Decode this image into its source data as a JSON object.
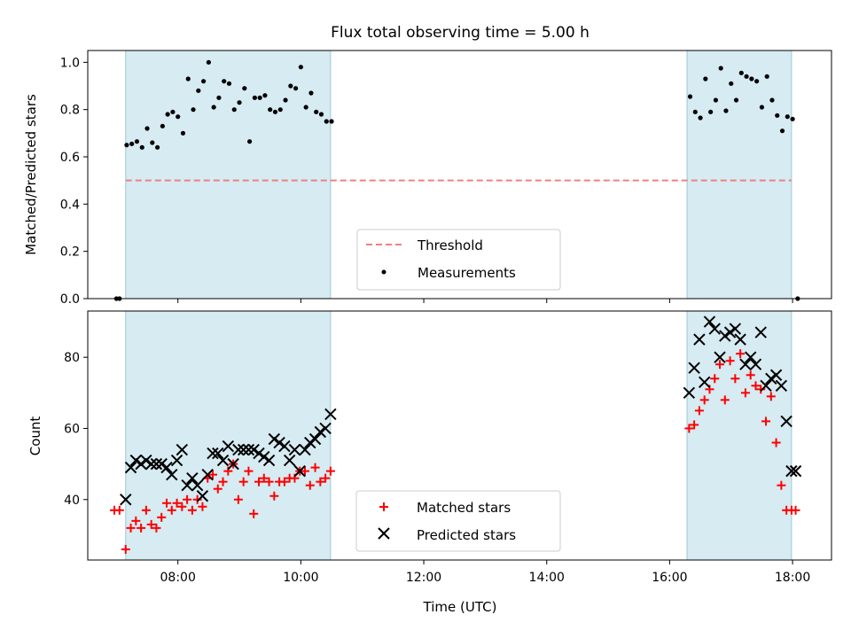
{
  "chart_data": [
    {
      "type": "scatter",
      "title": "Flux total observing time = 5.00 h",
      "ylabel": "Matched/Predicted stars",
      "xlabel": "",
      "xlim": [
        "06:32",
        "18:38"
      ],
      "ylim": [
        0,
        1.05
      ],
      "xticks": [
        "08:00",
        "10:00",
        "12:00",
        "14:00",
        "16:00",
        "18:00"
      ],
      "yticks": [
        "0.0",
        "0.2",
        "0.4",
        "0.6",
        "0.8",
        "1.0"
      ],
      "shaded_intervals": [
        [
          "07:09",
          "10:29"
        ],
        [
          "16:17",
          "17:59"
        ]
      ],
      "threshold": {
        "value": 0.5,
        "x_range": [
          "07:09",
          "17:59"
        ],
        "color": "#f08080"
      },
      "legend": {
        "placement": "lower-center",
        "entries": [
          "Threshold",
          "Measurements"
        ]
      },
      "series": [
        {
          "name": "Measurements",
          "marker": "dot",
          "color": "#000000",
          "x": [
            "07:00",
            "07:03",
            "07:10",
            "07:15",
            "07:20",
            "07:25",
            "07:30",
            "07:35",
            "07:40",
            "07:45",
            "07:50",
            "07:55",
            "08:00",
            "08:05",
            "08:10",
            "08:15",
            "08:20",
            "08:25",
            "08:30",
            "08:35",
            "08:40",
            "08:45",
            "08:50",
            "08:55",
            "09:00",
            "09:05",
            "09:10",
            "09:15",
            "09:20",
            "09:25",
            "09:30",
            "09:35",
            "09:40",
            "09:45",
            "09:50",
            "09:55",
            "10:00",
            "10:05",
            "10:10",
            "10:15",
            "10:20",
            "10:25",
            "10:30",
            "16:20",
            "16:25",
            "16:30",
            "16:35",
            "16:40",
            "16:45",
            "16:50",
            "16:55",
            "17:00",
            "17:05",
            "17:10",
            "17:15",
            "17:20",
            "17:25",
            "17:30",
            "17:35",
            "17:40",
            "17:45",
            "17:50",
            "17:55",
            "18:00",
            "18:05"
          ],
          "y": [
            0,
            0,
            0.65,
            0.655,
            0.665,
            0.64,
            0.72,
            0.66,
            0.64,
            0.73,
            0.78,
            0.79,
            0.77,
            0.7,
            0.93,
            0.8,
            0.88,
            0.92,
            1.0,
            0.81,
            0.85,
            0.92,
            0.91,
            0.8,
            0.83,
            0.89,
            0.665,
            0.85,
            0.85,
            0.86,
            0.8,
            0.79,
            0.8,
            0.84,
            0.9,
            0.89,
            0.98,
            0.81,
            0.87,
            0.79,
            0.78,
            0.75,
            0.75,
            0.855,
            0.79,
            0.765,
            0.93,
            0.79,
            0.84,
            0.975,
            0.795,
            0.91,
            0.84,
            0.955,
            0.94,
            0.93,
            0.92,
            0.81,
            0.94,
            0.84,
            0.775,
            0.71,
            0.77,
            0.76,
            0
          ]
        }
      ]
    },
    {
      "type": "scatter",
      "title": "",
      "ylabel": "Count",
      "xlabel": "Time (UTC)",
      "xlim": [
        "06:32",
        "18:38"
      ],
      "ylim": [
        23,
        93
      ],
      "xticks": [
        "08:00",
        "10:00",
        "12:00",
        "14:00",
        "16:00",
        "18:00"
      ],
      "yticks": [
        "40",
        "60",
        "80"
      ],
      "shaded_intervals": [
        [
          "07:09",
          "10:29"
        ],
        [
          "16:17",
          "17:59"
        ]
      ],
      "legend": {
        "placement": "lower-center",
        "entries": [
          "Matched stars",
          "Predicted stars"
        ]
      },
      "series": [
        {
          "name": "Matched stars",
          "marker": "plus",
          "color": "#ff0000",
          "x": [
            "06:58",
            "07:03",
            "07:09",
            "07:14",
            "07:19",
            "07:24",
            "07:29",
            "07:34",
            "07:39",
            "07:44",
            "07:49",
            "07:54",
            "07:59",
            "08:04",
            "08:09",
            "08:14",
            "08:19",
            "08:24",
            "08:29",
            "08:34",
            "08:39",
            "08:44",
            "08:49",
            "08:54",
            "08:59",
            "09:04",
            "09:09",
            "09:14",
            "09:19",
            "09:24",
            "09:29",
            "09:34",
            "09:39",
            "09:44",
            "09:49",
            "09:54",
            "09:59",
            "10:04",
            "10:09",
            "10:14",
            "10:19",
            "10:24",
            "10:29",
            "16:19",
            "16:24",
            "16:29",
            "16:34",
            "16:39",
            "16:44",
            "16:49",
            "16:54",
            "16:59",
            "17:04",
            "17:09",
            "17:14",
            "17:19",
            "17:24",
            "17:29",
            "17:34",
            "17:39",
            "17:44",
            "17:49",
            "17:54",
            "17:59",
            "18:03"
          ],
          "y": [
            37,
            37,
            26,
            32,
            34,
            32,
            37,
            33,
            32,
            35,
            39,
            37,
            39,
            38,
            40,
            37,
            40,
            38,
            46,
            47,
            43,
            45,
            48,
            50,
            40,
            45,
            48,
            36,
            45,
            46,
            45,
            41,
            45,
            45,
            46,
            46,
            48,
            48,
            44,
            49,
            45,
            46,
            48,
            60,
            61,
            65,
            68,
            71,
            74,
            78,
            68,
            79,
            74,
            81,
            70,
            75,
            72,
            71,
            62,
            69,
            56,
            44,
            37,
            37,
            37
          ]
        },
        {
          "name": "Predicted stars",
          "marker": "x",
          "color": "#000000",
          "x": [
            "07:09",
            "07:14",
            "07:19",
            "07:24",
            "07:29",
            "07:34",
            "07:39",
            "07:44",
            "07:49",
            "07:54",
            "07:59",
            "08:04",
            "08:09",
            "08:14",
            "08:19",
            "08:24",
            "08:29",
            "08:34",
            "08:39",
            "08:44",
            "08:49",
            "08:54",
            "08:59",
            "09:04",
            "09:09",
            "09:14",
            "09:19",
            "09:24",
            "09:29",
            "09:34",
            "09:39",
            "09:44",
            "09:49",
            "09:54",
            "09:59",
            "10:04",
            "10:09",
            "10:14",
            "10:19",
            "10:24",
            "10:29",
            "16:19",
            "16:24",
            "16:29",
            "16:34",
            "16:39",
            "16:44",
            "16:49",
            "16:54",
            "16:59",
            "17:04",
            "17:09",
            "17:14",
            "17:19",
            "17:24",
            "17:29",
            "17:34",
            "17:39",
            "17:44",
            "17:49",
            "17:54",
            "17:59",
            "18:03"
          ],
          "y": [
            40,
            49,
            51,
            50,
            51,
            50,
            50,
            50,
            49,
            47,
            51,
            54,
            44,
            46,
            44,
            41,
            47,
            53,
            53,
            51,
            55,
            50,
            54,
            54,
            54,
            54,
            53,
            52,
            51,
            57,
            56,
            55,
            51,
            54,
            48,
            54,
            56,
            57,
            59,
            60,
            64,
            70,
            77,
            85,
            73,
            90,
            88,
            80,
            86,
            87,
            88,
            85,
            78,
            80,
            78,
            87,
            72,
            74,
            75,
            72,
            62,
            48,
            48
          ]
        }
      ]
    }
  ]
}
